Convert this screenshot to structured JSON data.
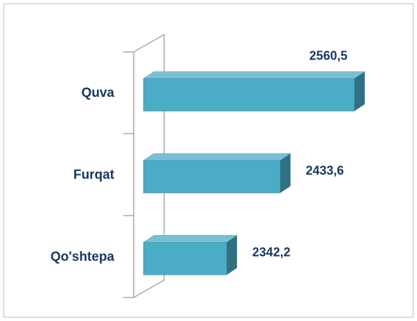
{
  "chart_data": {
    "type": "bar",
    "orientation": "horizontal",
    "categories": [
      "Quva",
      "Furqat",
      "Qo'shtepa"
    ],
    "values": [
      2560.5,
      2433.6,
      2342.2
    ],
    "value_labels": [
      "2560,5",
      "2433,6",
      "2342,2"
    ],
    "color": "#4bacc6",
    "xlim": [
      2200,
      2600
    ]
  }
}
